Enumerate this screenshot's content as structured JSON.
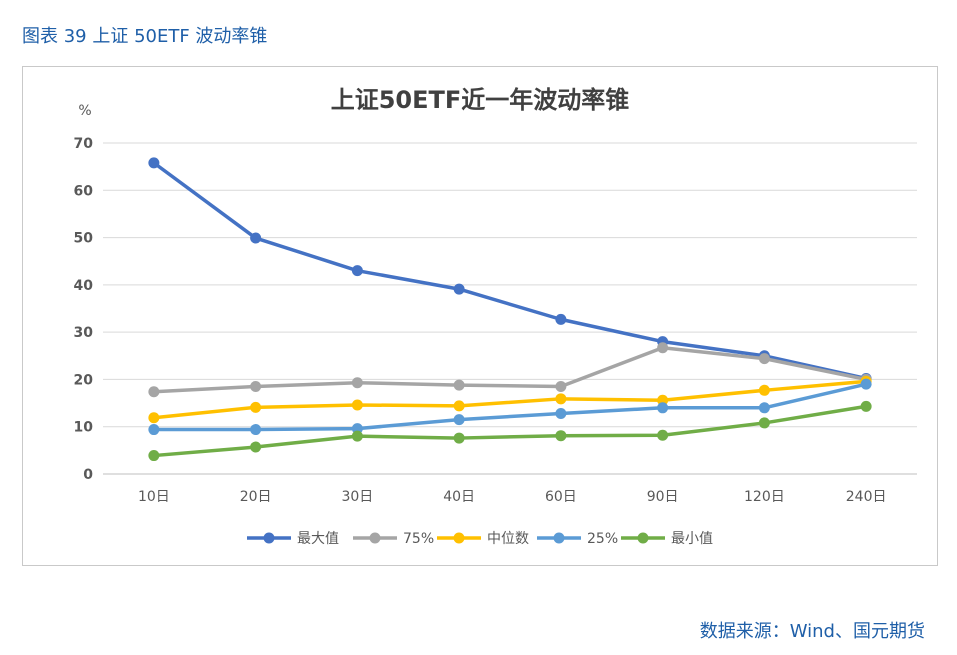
{
  "caption": "图表 39 上证 50ETF 波动率锥",
  "source": "数据来源：Wind、国元期货",
  "colors": {
    "caption_text": "#1f5fa8",
    "grid": "#d9d9d9",
    "axis_text": "#595959",
    "title_text": "#404040"
  },
  "chart_data": {
    "type": "line",
    "title": "上证50ETF近一年波动率锥",
    "ylabel": "%",
    "xlabel": "",
    "ylim": [
      0,
      70
    ],
    "yticks": [
      0,
      10,
      20,
      30,
      40,
      50,
      60,
      70
    ],
    "grid": true,
    "legend_position": "bottom",
    "categories": [
      "10日",
      "20日",
      "30日",
      "40日",
      "60日",
      "90日",
      "120日",
      "240日"
    ],
    "series": [
      {
        "name": "最大值",
        "color": "#4472c4",
        "values": [
          65.8,
          49.9,
          43.0,
          39.1,
          32.7,
          28.0,
          25.0,
          20.2
        ]
      },
      {
        "name": "75%",
        "color": "#a5a5a5",
        "values": [
          17.4,
          18.5,
          19.3,
          18.8,
          18.5,
          26.7,
          24.4,
          20.0
        ]
      },
      {
        "name": "中位数",
        "color": "#ffc000",
        "values": [
          11.9,
          14.1,
          14.6,
          14.4,
          15.9,
          15.6,
          17.7,
          19.6
        ]
      },
      {
        "name": "25%",
        "color": "#5b9bd5",
        "values": [
          9.4,
          9.4,
          9.6,
          11.5,
          12.8,
          14.0,
          14.0,
          19.0
        ]
      },
      {
        "name": "最小值",
        "color": "#70ad47",
        "values": [
          3.9,
          5.7,
          8.0,
          7.6,
          8.1,
          8.2,
          10.8,
          14.3
        ]
      }
    ]
  }
}
